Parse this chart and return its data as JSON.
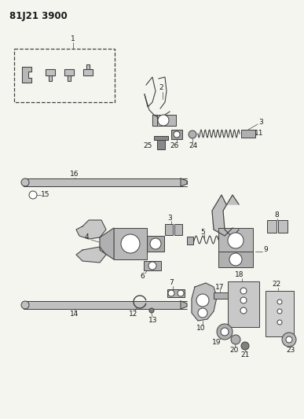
{
  "title": "81J21 3900",
  "bg": "#f5f5f0",
  "lc": "#404040",
  "fig_w": 3.87,
  "fig_h": 5.33,
  "dpi": 100
}
